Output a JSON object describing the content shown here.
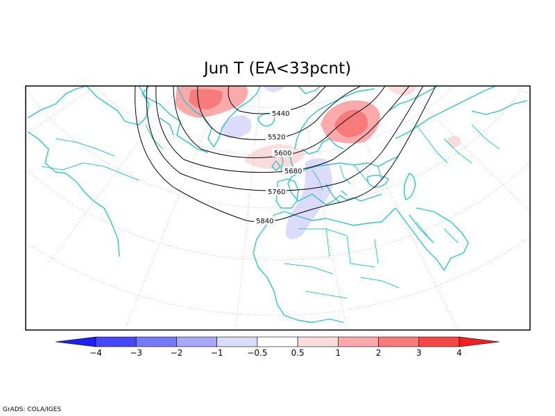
{
  "title": "Jun T (EA<33pcnt)",
  "credit": "GrADS: COLA/IGES",
  "colors": {
    "coast": "#2ec4c4",
    "grid": "#aaaaaa",
    "contour": "#000000",
    "neg4": "#1e1efa",
    "neg3": "#4646fa",
    "neg2": "#7878fa",
    "neg1": "#a8a8f8",
    "neg05": "#dcdcfa",
    "pos05": "#fadcdc",
    "pos1": "#faaaaa",
    "pos2": "#f87a7a",
    "pos3": "#f64646",
    "pos4": "#f41e1e"
  },
  "map_data": {
    "contour_labels": [
      "5440",
      "5520",
      "5600",
      "5680",
      "5760",
      "5840"
    ],
    "colorbar": {
      "ticks": [
        "−4",
        "−3",
        "−2",
        "−1",
        "−0.5",
        "0.5",
        "1",
        "2",
        "3",
        "4"
      ],
      "colors": [
        "#1e1efa",
        "#4646fa",
        "#7878fa",
        "#a8a8f8",
        "#dcdcfa",
        "#ffffff",
        "#fadcdc",
        "#faaaaa",
        "#f87a7a",
        "#f64646",
        "#f41e1e"
      ]
    }
  }
}
